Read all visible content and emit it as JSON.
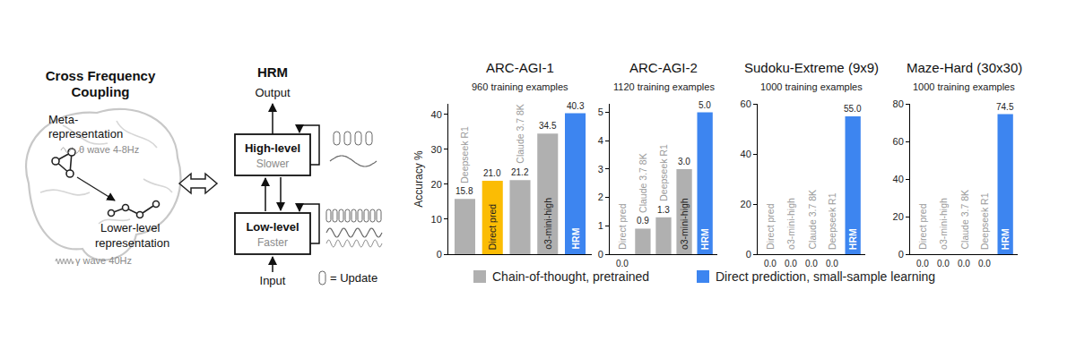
{
  "diagram": {
    "cfc": {
      "title_lines": [
        "Cross Frequency",
        "Coupling"
      ],
      "meta_lines": [
        "Meta-",
        "representation"
      ],
      "meta_wave": "θ wave 4-8Hz",
      "lower_lines": [
        "Lower-level",
        "representation"
      ],
      "lower_wave": "γ wave 40Hz"
    },
    "hrm": {
      "title": "HRM",
      "output": "Output",
      "input": "Input",
      "high": {
        "label": "High-level",
        "speed": "Slower"
      },
      "low": {
        "label": "Low-level",
        "speed": "Faster"
      },
      "update_note": "= Update"
    }
  },
  "legend_entries": [
    {
      "name": "Chain-of-thought, pretrained",
      "color": "#b0b0b0"
    },
    {
      "name": "Direct prediction, small-sample learning",
      "color": "#3d85f0"
    }
  ],
  "chart_data": [
    {
      "type": "bar",
      "title": "ARC-AGI-1",
      "subtitle": "960 training examples",
      "y_label": "Accuracy %",
      "categories": [
        "Deepseek R1",
        "Direct pred",
        "Claude 3.7 8K",
        "o3-mini-high",
        "HRM"
      ],
      "values": [
        15.8,
        21,
        21.2,
        34.5,
        40.3
      ],
      "value_labels": [
        "15.8",
        "21.0",
        "21.2",
        "34.5",
        "40.3"
      ],
      "colors": [
        "#b0b0b0",
        "#fbbc04",
        "#b0b0b0",
        "#b0b0b0",
        "#3d85f0"
      ],
      "ylim": [
        0,
        43
      ],
      "yticks": [
        0,
        10,
        20,
        30,
        40
      ],
      "grid": false,
      "data_labels": true,
      "tick_labels": "y"
    },
    {
      "type": "bar",
      "title": "ARC-AGI-2",
      "subtitle": "1120 training examples",
      "categories": [
        "Direct pred",
        "Claude 3.7 8K",
        "Deepseek R1",
        "o3-mini-high",
        "HRM"
      ],
      "values": [
        0,
        0.9,
        1.3,
        3,
        5
      ],
      "value_labels": [
        "0.0",
        "0.9",
        "1.3",
        "3.0",
        "5.0"
      ],
      "colors": [
        "#b0b0b0",
        "#b0b0b0",
        "#b0b0b0",
        "#b0b0b0",
        "#3d85f0"
      ],
      "ylim": [
        0,
        5.3
      ],
      "yticks": [
        0,
        1,
        2,
        3,
        4,
        5
      ],
      "grid": false,
      "data_labels": true,
      "tick_labels": "y"
    },
    {
      "type": "bar",
      "title": "Sudoku-Extreme (9x9)",
      "subtitle": "1000 training examples",
      "categories": [
        "Direct pred",
        "o3-mini-high",
        "Claude 3.7 8K",
        "Deepseek R1",
        "HRM"
      ],
      "values": [
        0,
        0,
        0,
        0,
        55
      ],
      "value_labels": [
        "0.0",
        "0.0",
        "0.0",
        "0.0",
        "55.0"
      ],
      "colors": [
        "#b0b0b0",
        "#b0b0b0",
        "#b0b0b0",
        "#b0b0b0",
        "#3d85f0"
      ],
      "ylim": [
        0,
        60
      ],
      "yticks": [
        0,
        20,
        40,
        60
      ],
      "grid": false,
      "data_labels": true,
      "tick_labels": "y"
    },
    {
      "type": "bar",
      "title": "Maze-Hard (30x30)",
      "subtitle": "1000 training examples",
      "categories": [
        "Direct pred",
        "o3-mini-high",
        "Claude 3.7 8K",
        "Deepseek R1",
        "HRM"
      ],
      "values": [
        0,
        0,
        0,
        0,
        74.5
      ],
      "value_labels": [
        "0.0",
        "0.0",
        "0.0",
        "0.0",
        "74.5"
      ],
      "colors": [
        "#b0b0b0",
        "#b0b0b0",
        "#b0b0b0",
        "#b0b0b0",
        "#3d85f0"
      ],
      "ylim": [
        0,
        80
      ],
      "yticks": [
        0,
        20,
        40,
        60,
        80
      ],
      "grid": false,
      "data_labels": true,
      "tick_labels": "y"
    }
  ]
}
